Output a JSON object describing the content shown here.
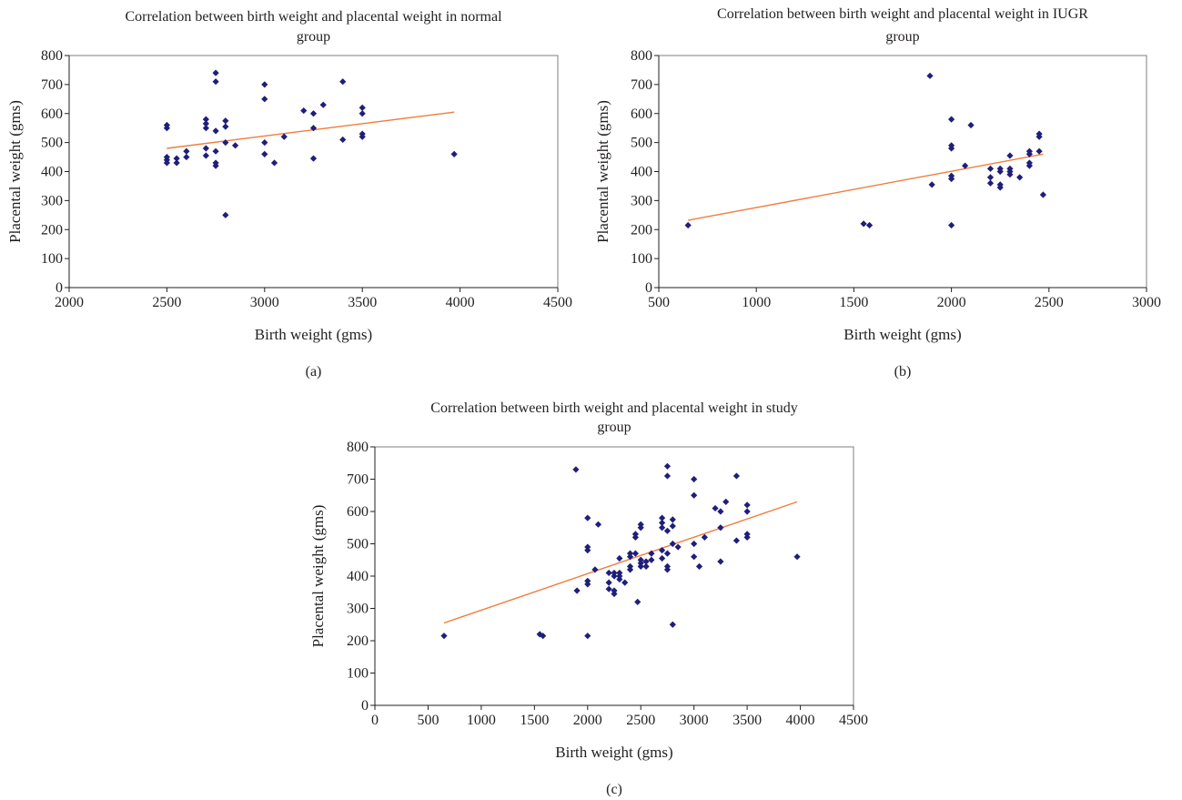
{
  "chart_data": [
    {
      "type": "scatter",
      "panel_label": "(a)",
      "title_lines": [
        "Correlation between birth weight and placental weight in normal",
        "group"
      ],
      "xlabel": "Birth weight (gms)",
      "ylabel": "Placental weight (gms)",
      "xlim": [
        2000,
        4500
      ],
      "ylim": [
        0,
        800
      ],
      "xticks": [
        2000,
        2500,
        3000,
        3500,
        4000,
        4500
      ],
      "yticks": [
        0,
        100,
        200,
        300,
        400,
        500,
        600,
        700,
        800
      ],
      "grid": false,
      "legend": "none",
      "colors": {
        "points": "#1f1f7a",
        "trendline": "#f07c3c"
      },
      "trendline": [
        [
          2500,
          480
        ],
        [
          3970,
          605
        ]
      ],
      "points": [
        [
          2500,
          430
        ],
        [
          2500,
          440
        ],
        [
          2500,
          450
        ],
        [
          2500,
          550
        ],
        [
          2500,
          560
        ],
        [
          2550,
          430
        ],
        [
          2550,
          445
        ],
        [
          2600,
          450
        ],
        [
          2600,
          470
        ],
        [
          2700,
          455
        ],
        [
          2700,
          480
        ],
        [
          2700,
          550
        ],
        [
          2700,
          565
        ],
        [
          2700,
          580
        ],
        [
          2750,
          420
        ],
        [
          2750,
          430
        ],
        [
          2750,
          470
        ],
        [
          2750,
          540
        ],
        [
          2750,
          710
        ],
        [
          2750,
          740
        ],
        [
          2800,
          250
        ],
        [
          2800,
          500
        ],
        [
          2800,
          555
        ],
        [
          2800,
          575
        ],
        [
          2850,
          490
        ],
        [
          3000,
          460
        ],
        [
          3000,
          500
        ],
        [
          3000,
          650
        ],
        [
          3000,
          700
        ],
        [
          3050,
          430
        ],
        [
          3100,
          520
        ],
        [
          3200,
          610
        ],
        [
          3250,
          445
        ],
        [
          3250,
          550
        ],
        [
          3250,
          600
        ],
        [
          3300,
          630
        ],
        [
          3400,
          510
        ],
        [
          3400,
          710
        ],
        [
          3500,
          520
        ],
        [
          3500,
          530
        ],
        [
          3500,
          600
        ],
        [
          3500,
          620
        ],
        [
          3970,
          460
        ]
      ]
    },
    {
      "type": "scatter",
      "panel_label": "(b)",
      "title_lines": [
        "Correlation between birth weight and placental weight in IUGR",
        "group"
      ],
      "xlabel": "Birth weight (gms)",
      "ylabel": "Placental weight (gms)",
      "xlim": [
        500,
        3000
      ],
      "ylim": [
        0,
        800
      ],
      "xticks": [
        500,
        1000,
        1500,
        2000,
        2500,
        3000
      ],
      "yticks": [
        0,
        100,
        200,
        300,
        400,
        500,
        600,
        700,
        800
      ],
      "grid": false,
      "legend": "none",
      "colors": {
        "points": "#1f1f7a",
        "trendline": "#f07c3c"
      },
      "trendline": [
        [
          650,
          232
        ],
        [
          2470,
          460
        ]
      ],
      "points": [
        [
          650,
          215
        ],
        [
          1550,
          220
        ],
        [
          1580,
          215
        ],
        [
          1890,
          730
        ],
        [
          1900,
          355
        ],
        [
          2000,
          215
        ],
        [
          2000,
          375
        ],
        [
          2000,
          385
        ],
        [
          2000,
          480
        ],
        [
          2000,
          490
        ],
        [
          2000,
          580
        ],
        [
          2070,
          420
        ],
        [
          2100,
          560
        ],
        [
          2200,
          360
        ],
        [
          2200,
          380
        ],
        [
          2200,
          410
        ],
        [
          2250,
          345
        ],
        [
          2250,
          355
        ],
        [
          2250,
          400
        ],
        [
          2250,
          410
        ],
        [
          2300,
          390
        ],
        [
          2300,
          400
        ],
        [
          2300,
          410
        ],
        [
          2300,
          455
        ],
        [
          2350,
          380
        ],
        [
          2400,
          420
        ],
        [
          2400,
          430
        ],
        [
          2400,
          460
        ],
        [
          2400,
          470
        ],
        [
          2450,
          470
        ],
        [
          2450,
          520
        ],
        [
          2450,
          530
        ],
        [
          2470,
          320
        ]
      ]
    },
    {
      "type": "scatter",
      "panel_label": "(c)",
      "title_lines": [
        "Correlation between birth weight and placental weight in study",
        "group"
      ],
      "xlabel": "Birth weight (gms)",
      "ylabel": "Placental weight (gms)",
      "xlim": [
        0,
        4500
      ],
      "ylim": [
        0,
        800
      ],
      "xticks": [
        0,
        500,
        1000,
        1500,
        2000,
        2500,
        3000,
        3500,
        4000,
        4500
      ],
      "yticks": [
        0,
        100,
        200,
        300,
        400,
        500,
        600,
        700,
        800
      ],
      "grid": false,
      "legend": "none",
      "colors": {
        "points": "#1f1f7a",
        "trendline": "#f07c3c"
      },
      "trendline": [
        [
          650,
          255
        ],
        [
          3970,
          630
        ]
      ],
      "points": [
        [
          650,
          215
        ],
        [
          1550,
          220
        ],
        [
          1580,
          215
        ],
        [
          1890,
          730
        ],
        [
          1900,
          355
        ],
        [
          2000,
          215
        ],
        [
          2000,
          375
        ],
        [
          2000,
          385
        ],
        [
          2000,
          480
        ],
        [
          2000,
          490
        ],
        [
          2000,
          580
        ],
        [
          2070,
          420
        ],
        [
          2100,
          560
        ],
        [
          2200,
          360
        ],
        [
          2200,
          380
        ],
        [
          2200,
          410
        ],
        [
          2250,
          345
        ],
        [
          2250,
          355
        ],
        [
          2250,
          400
        ],
        [
          2250,
          410
        ],
        [
          2300,
          390
        ],
        [
          2300,
          400
        ],
        [
          2300,
          410
        ],
        [
          2300,
          455
        ],
        [
          2350,
          380
        ],
        [
          2400,
          420
        ],
        [
          2400,
          430
        ],
        [
          2400,
          460
        ],
        [
          2400,
          470
        ],
        [
          2450,
          470
        ],
        [
          2450,
          520
        ],
        [
          2450,
          530
        ],
        [
          2470,
          320
        ],
        [
          2500,
          430
        ],
        [
          2500,
          440
        ],
        [
          2500,
          450
        ],
        [
          2500,
          550
        ],
        [
          2500,
          560
        ],
        [
          2550,
          430
        ],
        [
          2550,
          445
        ],
        [
          2600,
          450
        ],
        [
          2600,
          470
        ],
        [
          2700,
          455
        ],
        [
          2700,
          480
        ],
        [
          2700,
          550
        ],
        [
          2700,
          565
        ],
        [
          2700,
          580
        ],
        [
          2750,
          420
        ],
        [
          2750,
          430
        ],
        [
          2750,
          470
        ],
        [
          2750,
          540
        ],
        [
          2750,
          710
        ],
        [
          2750,
          740
        ],
        [
          2800,
          250
        ],
        [
          2800,
          500
        ],
        [
          2800,
          555
        ],
        [
          2800,
          575
        ],
        [
          2850,
          490
        ],
        [
          3000,
          460
        ],
        [
          3000,
          500
        ],
        [
          3000,
          650
        ],
        [
          3000,
          700
        ],
        [
          3050,
          430
        ],
        [
          3100,
          520
        ],
        [
          3200,
          610
        ],
        [
          3250,
          445
        ],
        [
          3250,
          550
        ],
        [
          3250,
          600
        ],
        [
          3300,
          630
        ],
        [
          3400,
          510
        ],
        [
          3400,
          710
        ],
        [
          3500,
          520
        ],
        [
          3500,
          530
        ],
        [
          3500,
          600
        ],
        [
          3500,
          620
        ],
        [
          3970,
          460
        ]
      ]
    }
  ]
}
